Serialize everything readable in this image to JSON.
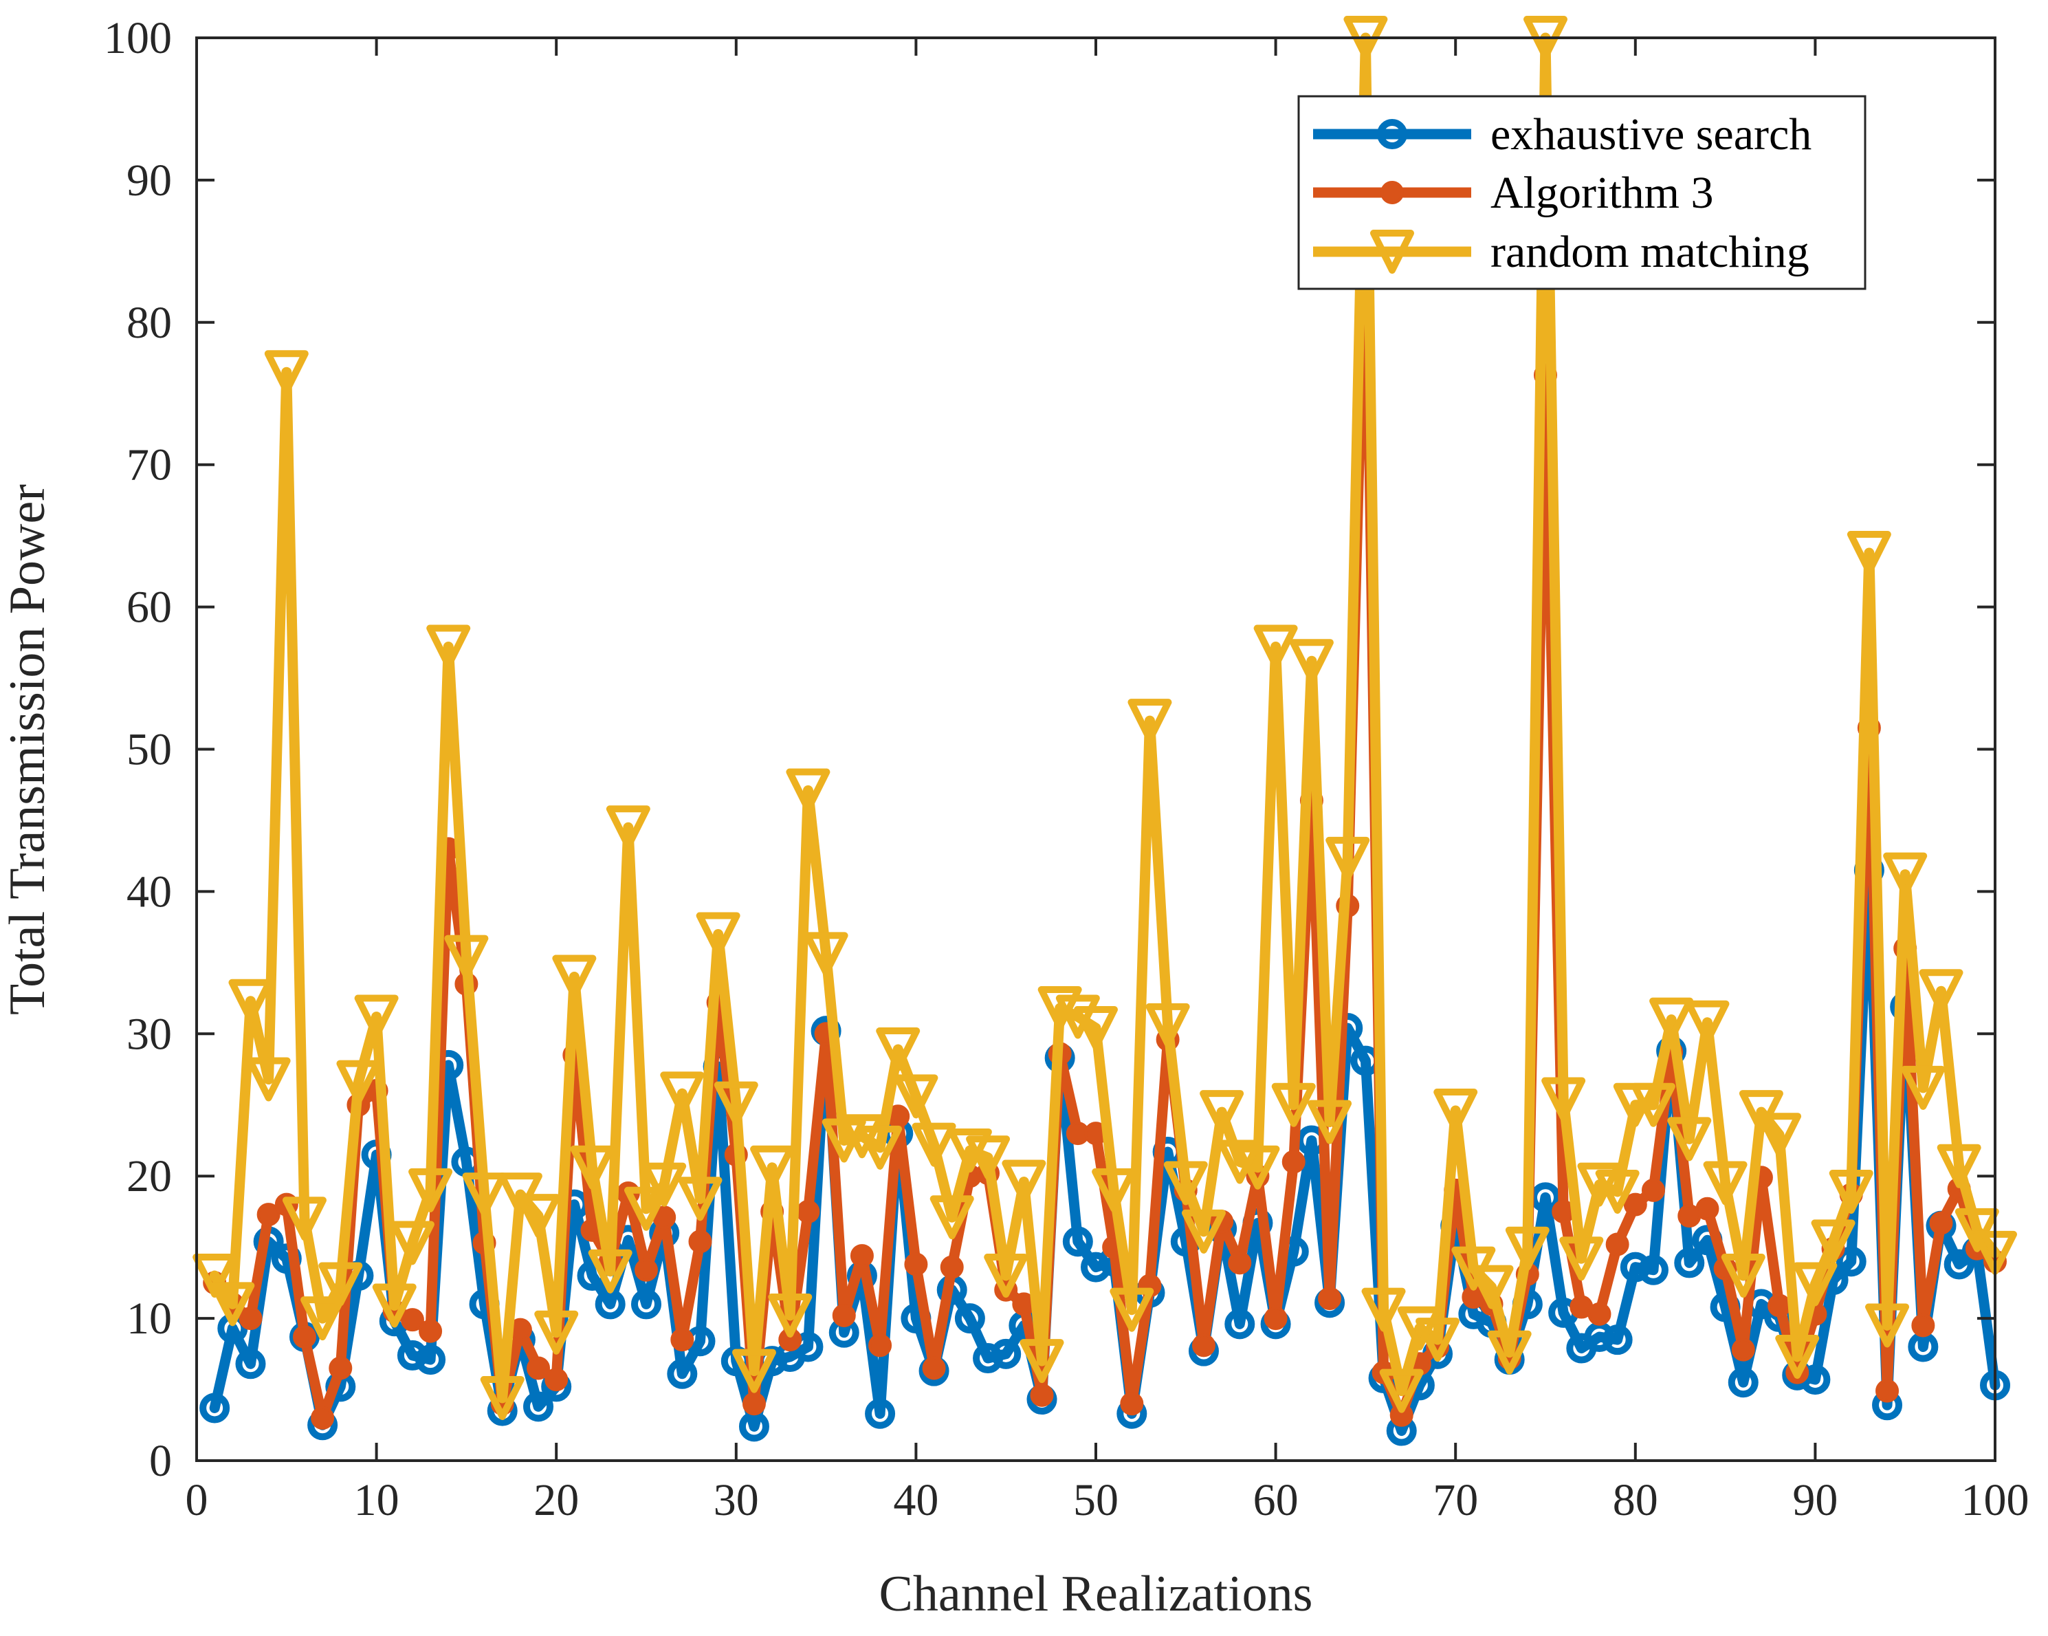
{
  "chart_data": {
    "type": "line",
    "title": "",
    "xlabel": "Channel Realizations",
    "ylabel": "Total Transmission Power",
    "xlim": [
      0,
      100
    ],
    "ylim": [
      0,
      100
    ],
    "xticks": [
      0,
      10,
      20,
      30,
      40,
      50,
      60,
      70,
      80,
      90,
      100
    ],
    "yticks": [
      0,
      10,
      20,
      30,
      40,
      50,
      60,
      70,
      80,
      90,
      100
    ],
    "grid": false,
    "legend_position": "top-right",
    "x": [
      1,
      2,
      3,
      4,
      5,
      6,
      7,
      8,
      9,
      10,
      11,
      12,
      13,
      14,
      15,
      16,
      17,
      18,
      19,
      20,
      21,
      22,
      23,
      24,
      25,
      26,
      27,
      28,
      29,
      30,
      31,
      32,
      33,
      34,
      35,
      36,
      37,
      38,
      39,
      40,
      41,
      42,
      43,
      44,
      45,
      46,
      47,
      48,
      49,
      50,
      51,
      52,
      53,
      54,
      55,
      56,
      57,
      58,
      59,
      60,
      61,
      62,
      63,
      64,
      65,
      66,
      67,
      68,
      69,
      70,
      71,
      72,
      73,
      74,
      75,
      76,
      77,
      78,
      79,
      80,
      81,
      82,
      83,
      84,
      85,
      86,
      87,
      88,
      89,
      90,
      91,
      92,
      93,
      94,
      95,
      96,
      97,
      98,
      99,
      100
    ],
    "series": [
      {
        "name": "exhaustive search",
        "color": "#0072BD",
        "marker": "circle",
        "values": [
          3.7,
          9.3,
          6.8,
          15.4,
          14.2,
          8.7,
          2.5,
          5.2,
          13.0,
          21.5,
          9.8,
          7.4,
          7.1,
          27.8,
          21.0,
          11.0,
          3.5,
          8.5,
          3.8,
          5.2,
          18.0,
          13.0,
          11.0,
          15.5,
          11.0,
          16.0,
          6.1,
          8.4,
          27.7,
          7.0,
          2.4,
          7.0,
          7.3,
          8.0,
          30.2,
          9.0,
          13.0,
          3.3,
          23.0,
          10.0,
          6.3,
          12.0,
          10.0,
          7.2,
          7.5,
          9.5,
          4.3,
          28.3,
          15.4,
          13.6,
          14.0,
          3.3,
          11.8,
          21.7,
          15.4,
          7.7,
          16.3,
          9.6,
          16.7,
          9.6,
          14.7,
          22.5,
          11.1,
          30.4,
          28.1,
          5.8,
          2.1,
          5.3,
          7.5,
          16.5,
          10.3,
          9.7,
          7.1,
          11.0,
          18.5,
          10.4,
          7.9,
          8.7,
          8.5,
          13.6,
          13.4,
          28.8,
          13.9,
          15.5,
          10.8,
          5.5,
          11.0,
          10.1,
          6.0,
          5.7,
          12.7,
          14.0,
          41.5,
          3.9,
          31.9,
          8.0,
          16.5,
          13.8,
          14.7,
          5.3
        ]
      },
      {
        "name": "Algorithm 3",
        "color": "#D95319",
        "marker": "filled-circle",
        "values": [
          12.5,
          11.0,
          10.0,
          17.3,
          18.0,
          8.7,
          3.0,
          6.5,
          25.0,
          26.0,
          10.5,
          9.9,
          9.1,
          43.0,
          33.5,
          15.3,
          4.0,
          9.2,
          6.5,
          5.7,
          28.5,
          16.2,
          14.0,
          18.8,
          13.4,
          17.1,
          8.5,
          15.4,
          32.2,
          21.5,
          4.0,
          17.5,
          8.5,
          17.5,
          30.0,
          10.2,
          14.4,
          8.1,
          24.2,
          13.8,
          6.5,
          13.6,
          20.0,
          20.2,
          12.0,
          11.0,
          4.6,
          28.6,
          23.0,
          23.0,
          15.0,
          4.0,
          12.3,
          29.6,
          19.0,
          8.1,
          16.8,
          13.9,
          20.0,
          10.0,
          21.0,
          46.4,
          11.4,
          39.0,
          88.0,
          6.2,
          3.2,
          6.8,
          8.0,
          19.0,
          11.5,
          11.0,
          7.2,
          13.1,
          76.3,
          17.5,
          10.8,
          10.3,
          15.2,
          18.0,
          19.0,
          28.7,
          17.2,
          17.7,
          13.5,
          7.8,
          19.9,
          10.9,
          6.2,
          10.3,
          14.9,
          18.7,
          51.5,
          4.9,
          36.0,
          9.5,
          16.7,
          19.1,
          14.9,
          14.0
        ]
      },
      {
        "name": "random matching",
        "color": "#EDB120",
        "marker": "triangle-down",
        "values": [
          13.0,
          11.0,
          32.3,
          26.8,
          76.5,
          17.0,
          10.0,
          12.4,
          26.6,
          31.2,
          10.9,
          15.3,
          19.0,
          57.2,
          35.4,
          18.7,
          4.4,
          18.7,
          17.2,
          9.0,
          34.0,
          20.6,
          13.3,
          44.5,
          17.7,
          19.4,
          25.8,
          18.4,
          37.0,
          25.1,
          6.3,
          20.6,
          10.2,
          47.1,
          35.6,
          22.5,
          22.8,
          22.0,
          28.9,
          25.6,
          22.2,
          17.1,
          21.8,
          21.3,
          13.0,
          19.6,
          7.0,
          31.8,
          31.2,
          30.4,
          19.0,
          10.6,
          52.0,
          30.6,
          19.5,
          16.1,
          24.5,
          21.0,
          20.6,
          57.2,
          25.0,
          56.2,
          23.8,
          42.3,
          100.0,
          10.6,
          4.9,
          9.3,
          8.5,
          24.6,
          13.5,
          12.2,
          7.6,
          14.9,
          100.0,
          25.4,
          14.2,
          19.4,
          18.9,
          25.0,
          25.0,
          31.0,
          22.6,
          30.8,
          19.5,
          13.0,
          24.5,
          22.9,
          7.3,
          12.4,
          15.4,
          18.9,
          63.8,
          9.5,
          41.2,
          26.2,
          33.0,
          20.7,
          16.2,
          14.6
        ]
      }
    ]
  }
}
